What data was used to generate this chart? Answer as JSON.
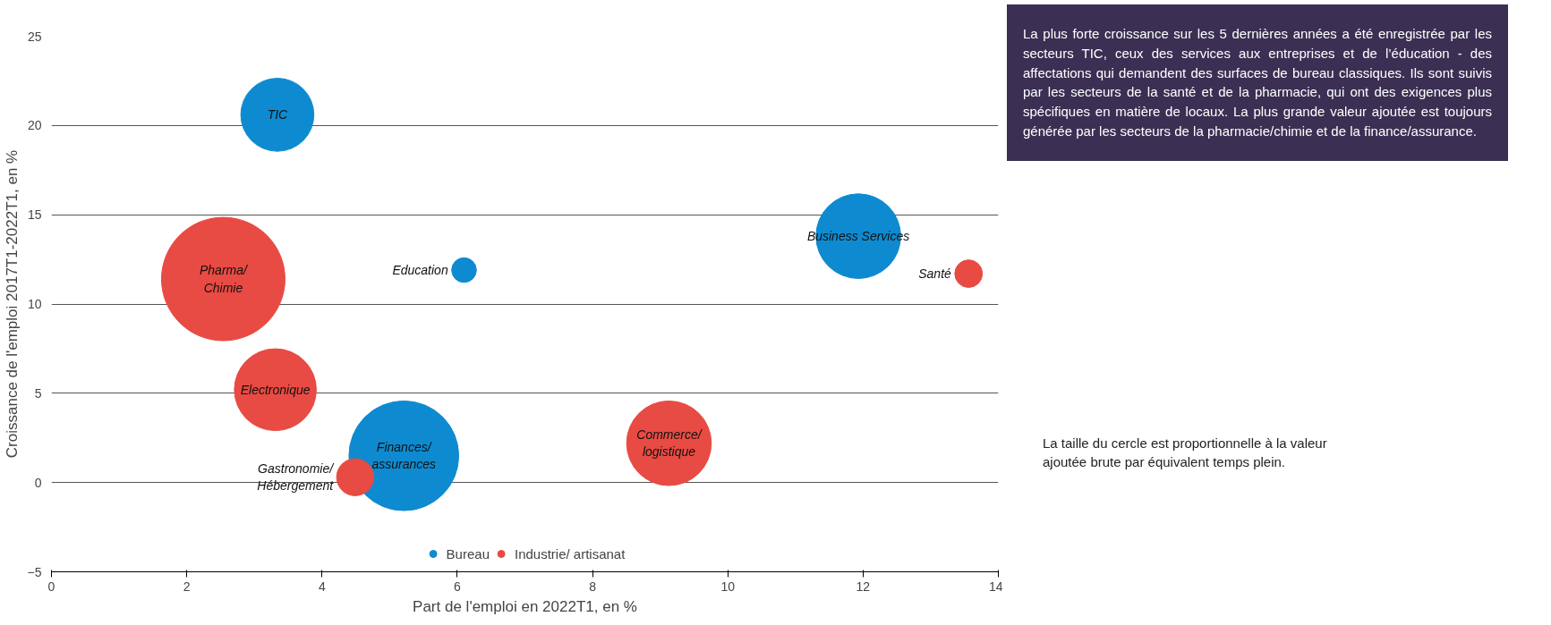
{
  "chart_data": {
    "type": "bubble",
    "xlabel": "Part de l'emploi en 2022T1, en %",
    "ylabel": "Croissance de l'emploi 2017T1-2022T1, en %",
    "xlim": [
      0,
      14
    ],
    "xticks": [
      0,
      2,
      4,
      6,
      8,
      10,
      12,
      14
    ],
    "ylim": [
      -5,
      25
    ],
    "yticks": [
      -5,
      0,
      5,
      10,
      15,
      20,
      25
    ],
    "grid": "y",
    "legend": "bottom",
    "marker": "circle",
    "series": [
      {
        "name": "Bureau",
        "color": "#0e8bd0",
        "x": [
          3.34,
          6.1,
          5.21,
          11.93
        ],
        "values": [
          20.6,
          11.9,
          1.5,
          13.8
        ],
        "sizes": [
          0.35,
          0.04,
          0.79,
          0.47
        ]
      },
      {
        "name": "Industrie/ artisanat",
        "color": "#e84b43",
        "x": [
          2.54,
          3.31,
          4.49,
          9.13,
          13.56
        ],
        "values": [
          11.4,
          5.2,
          0.3,
          2.2,
          11.7
        ],
        "sizes": [
          1,
          0.44,
          0.09,
          0.47,
          0.05
        ]
      }
    ],
    "annotations": [
      {
        "text": "TIC",
        "x": 3.34,
        "y": 20.6
      },
      {
        "text": "Education",
        "x": 6.1,
        "y": 11.9
      },
      {
        "text": "Finances/\nassurances",
        "x": 5.21,
        "y": 1.5
      },
      {
        "text": "Business Services",
        "x": 11.93,
        "y": 13.8
      },
      {
        "text": "Pharma/\nChimie",
        "x": 2.54,
        "y": 11.4
      },
      {
        "text": "Electronique",
        "x": 3.31,
        "y": 5.2
      },
      {
        "text": "Gastronomie/\nHébergement",
        "x": 4.49,
        "y": 0.3
      },
      {
        "text": "Commerce/\nlogistique",
        "x": 9.13,
        "y": 2.2
      },
      {
        "text": "Santé",
        "x": 13.56,
        "y": 11.7
      },
      "La plus forte croissance sur les 5 dernières années a été enregistrée par les secteurs TIC, ceux des services aux entreprises et de l’éducation - des affectations qui demandent des surfaces de bureau classiques. Ils sont suivis par les secteurs de la santé et de la pharmacie, qui ont des exigences plus spécifiques en matière de locaux. La plus grande valeur ajoutée est toujours générée par les secteurs de la pharmacie/chimie et de la finance/assurance.",
      "La taille du cercle est proportionnelle à la valeur ajoutée brute par équivalent temps plein."
    ]
  }
}
